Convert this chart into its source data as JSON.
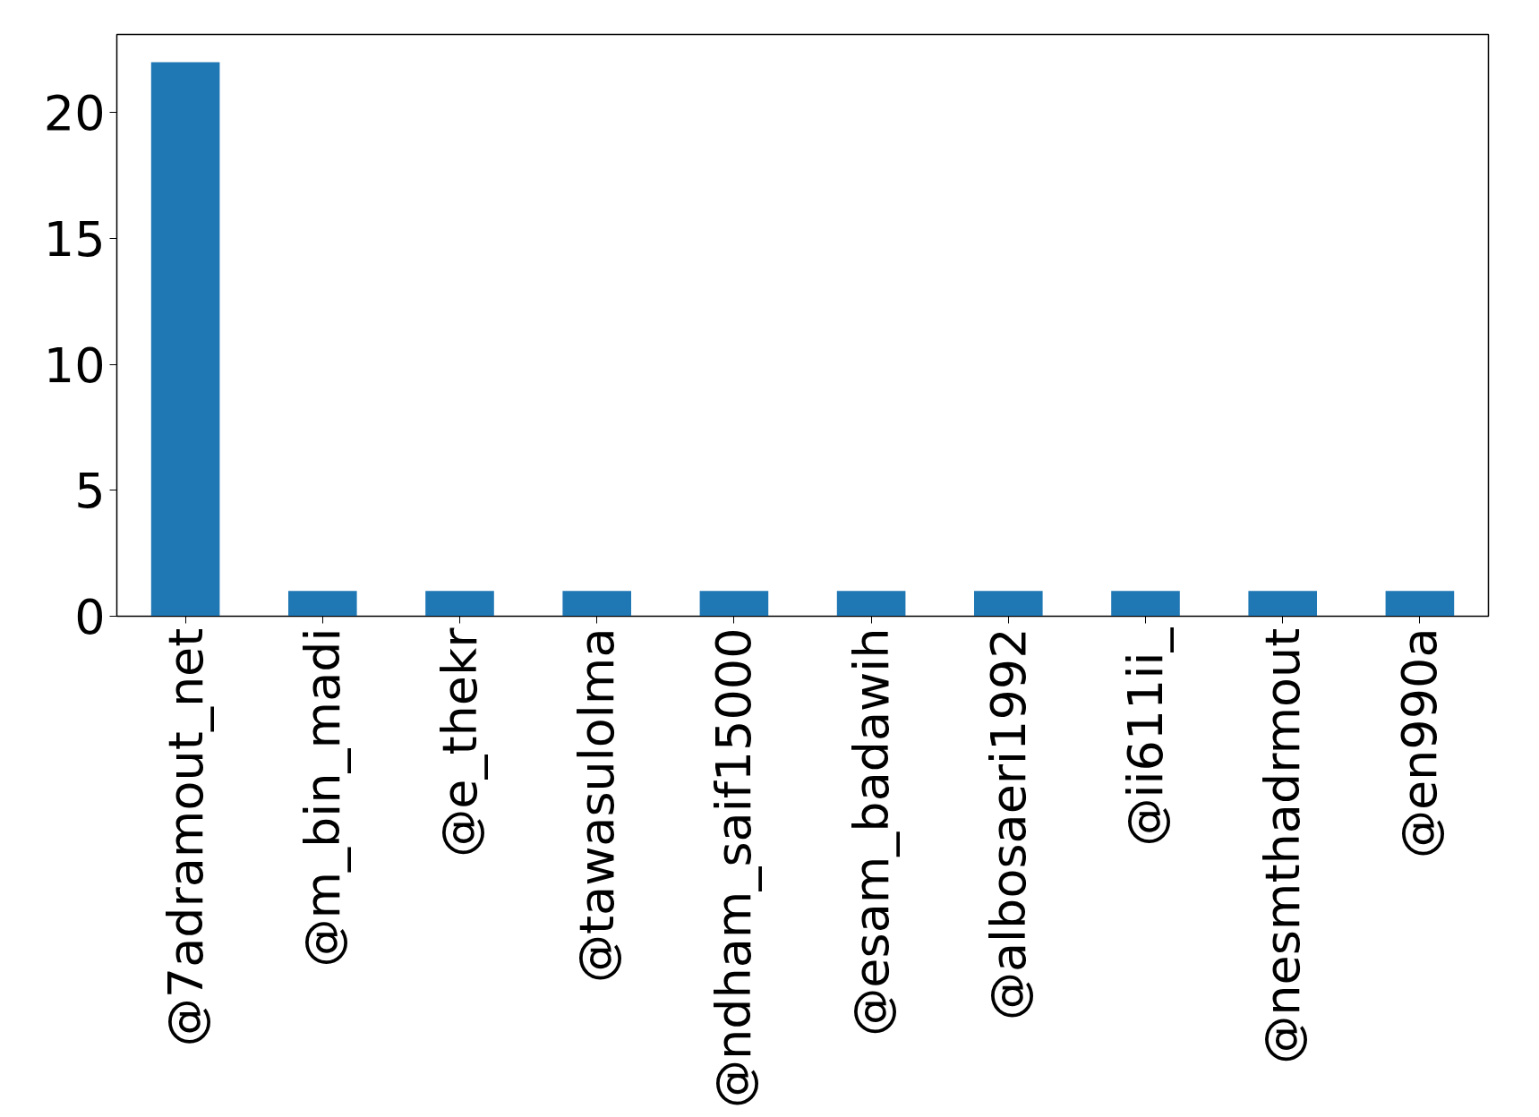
{
  "chart_data": {
    "type": "bar",
    "categories": [
      "@7adramout_net",
      "@m_bin_madi",
      "@e_thekr",
      "@tawasulolma",
      "@ndham_saif15000",
      "@esam_badawih",
      "@albosaeri1992",
      "@ii611ii_",
      "@nesmthadrmout",
      "@en990a"
    ],
    "values": [
      22,
      1,
      1,
      1,
      1,
      1,
      1,
      1,
      1,
      1
    ],
    "color": "#1f77b4",
    "ylim": [
      0,
      23.1
    ],
    "yticks": [
      0,
      5,
      10,
      15,
      20
    ],
    "grid": false
  }
}
